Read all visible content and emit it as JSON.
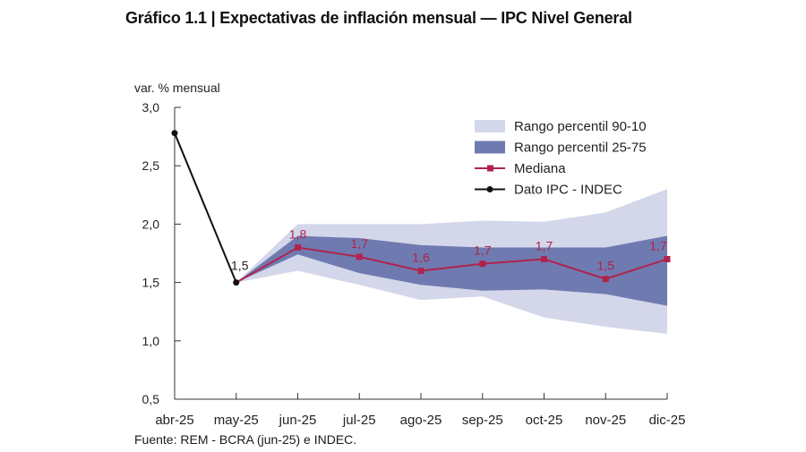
{
  "title": "Gráfico 1.1 | Expectativas de inflación mensual — IPC Nivel General",
  "source": "Fuente: REM - BCRA (jun-25) e INDEC.",
  "colors": {
    "band_90_10": "#d4d7ea",
    "band_25_75": "#6f7bb0",
    "median": "#b0234d",
    "ipc": "#111111",
    "axis": "#333333"
  },
  "chart_data": {
    "type": "line",
    "ylabel": "var. % mensual",
    "ylim": [
      0.5,
      3.0
    ],
    "yticks": [
      "0,5",
      "1,0",
      "1,5",
      "2,0",
      "2,5",
      "3,0"
    ],
    "ytick_values": [
      0.5,
      1.0,
      1.5,
      2.0,
      2.5,
      3.0
    ],
    "categories": [
      "abr-25",
      "may-25",
      "jun-25",
      "jul-25",
      "ago-25",
      "sep-25",
      "oct-25",
      "nov-25",
      "dic-25"
    ],
    "legend_position": "top-right",
    "legend": [
      "Rango percentil 90-10",
      "Rango percentil 25-75",
      "Mediana",
      "Dato IPC - INDEC"
    ],
    "series": [
      {
        "name": "Dato IPC - INDEC",
        "x": [
          0,
          1
        ],
        "values": [
          2.78,
          1.5
        ],
        "labels": [
          "",
          "1,5"
        ]
      },
      {
        "name": "Mediana",
        "x": [
          1,
          2,
          3,
          4,
          5,
          6,
          7,
          8
        ],
        "values": [
          1.5,
          1.8,
          1.72,
          1.6,
          1.66,
          1.7,
          1.53,
          1.7
        ],
        "labels": [
          "",
          "1,8",
          "1,7",
          "1,6",
          "1,7",
          "1,7",
          "1,5",
          "1,7"
        ]
      },
      {
        "name": "Rango percentil 90-10",
        "x": [
          1,
          2,
          3,
          4,
          5,
          6,
          7,
          8
        ],
        "upper": [
          1.5,
          2.0,
          2.0,
          2.0,
          2.03,
          2.02,
          2.1,
          2.3
        ],
        "lower": [
          1.5,
          1.6,
          1.48,
          1.35,
          1.38,
          1.2,
          1.12,
          1.06
        ]
      },
      {
        "name": "Rango percentil 25-75",
        "x": [
          1,
          2,
          3,
          4,
          5,
          6,
          7,
          8
        ],
        "upper": [
          1.5,
          1.9,
          1.88,
          1.82,
          1.8,
          1.8,
          1.8,
          1.9
        ],
        "lower": [
          1.5,
          1.74,
          1.58,
          1.48,
          1.43,
          1.44,
          1.4,
          1.3
        ]
      }
    ]
  }
}
